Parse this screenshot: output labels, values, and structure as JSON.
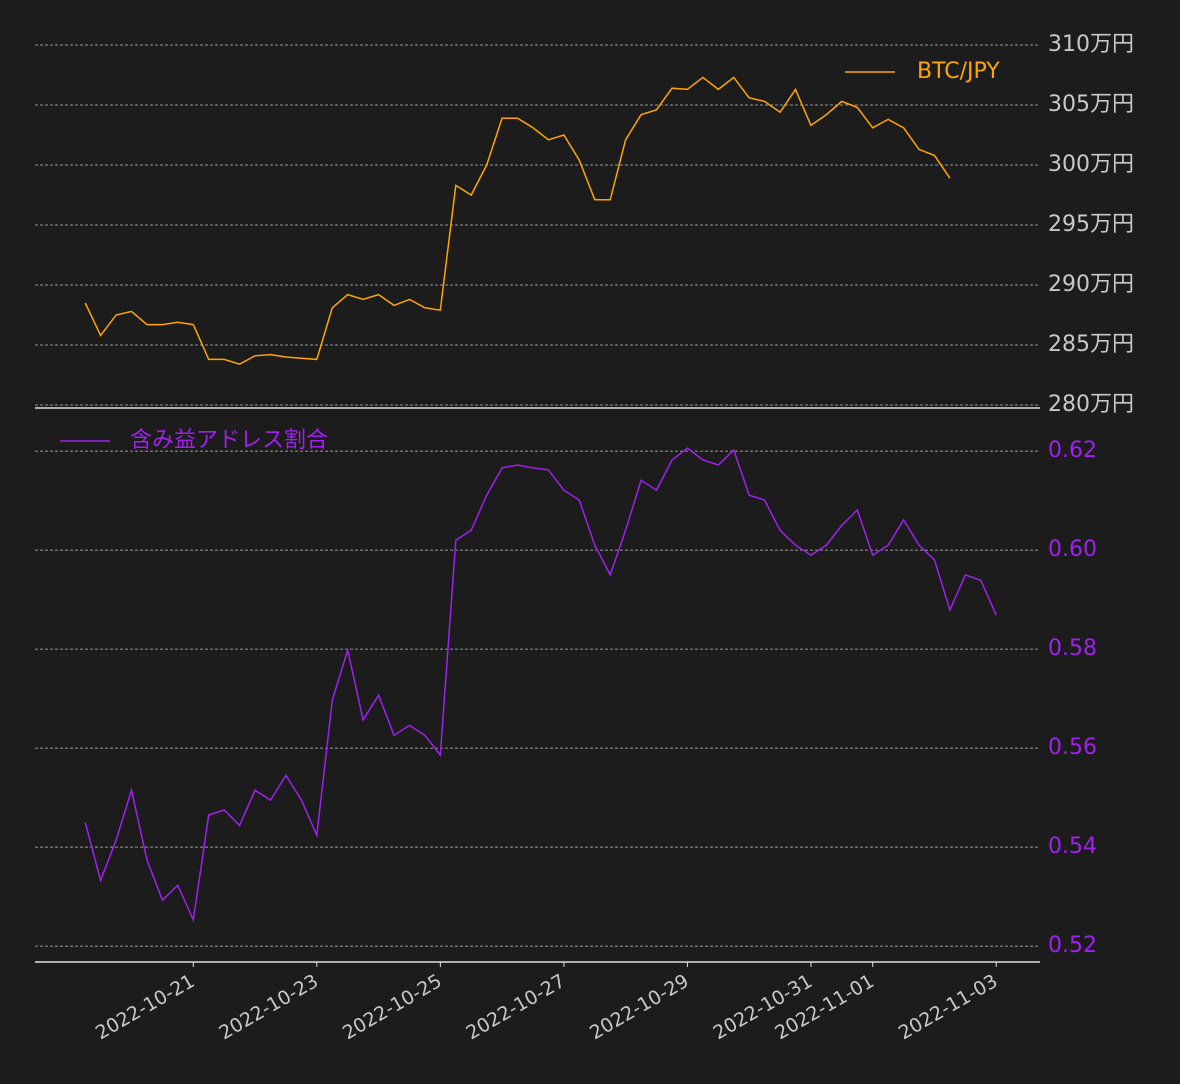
{
  "chart_data": [
    {
      "type": "line",
      "x": [
        "2022-10-19 06:00",
        "2022-10-19 12:00",
        "2022-10-19 18:00",
        "2022-10-20 00:00",
        "2022-10-20 06:00",
        "2022-10-20 12:00",
        "2022-10-20 18:00",
        "2022-10-21 00:00",
        "2022-10-21 06:00",
        "2022-10-21 12:00",
        "2022-10-21 18:00",
        "2022-10-22 00:00",
        "2022-10-22 06:00",
        "2022-10-22 12:00",
        "2022-10-22 18:00",
        "2022-10-23 00:00",
        "2022-10-23 06:00",
        "2022-10-23 12:00",
        "2022-10-23 18:00",
        "2022-10-24 00:00",
        "2022-10-24 06:00",
        "2022-10-24 12:00",
        "2022-10-24 18:00",
        "2022-10-25 00:00",
        "2022-10-25 06:00",
        "2022-10-25 12:00",
        "2022-10-25 18:00",
        "2022-10-26 00:00",
        "2022-10-26 06:00",
        "2022-10-26 12:00",
        "2022-10-26 18:00",
        "2022-10-27 00:00",
        "2022-10-27 06:00",
        "2022-10-27 12:00",
        "2022-10-27 18:00",
        "2022-10-28 00:00",
        "2022-10-28 06:00",
        "2022-10-28 12:00",
        "2022-10-28 18:00",
        "2022-10-29 00:00",
        "2022-10-29 06:00",
        "2022-10-29 12:00",
        "2022-10-29 18:00",
        "2022-10-30 00:00",
        "2022-10-30 06:00",
        "2022-10-30 12:00",
        "2022-10-30 18:00",
        "2022-10-31 00:00",
        "2022-10-31 06:00",
        "2022-10-31 12:00",
        "2022-10-31 18:00",
        "2022-11-01 00:00",
        "2022-11-01 06:00",
        "2022-11-01 12:00",
        "2022-11-01 18:00",
        "2022-11-02 00:00",
        "2022-11-02 06:00",
        "2022-11-02 12:00",
        "2022-11-02 18:00",
        "2022-11-03 00:00"
      ],
      "series": [
        {
          "name": "BTC/JPY",
          "color": "#ffa500",
          "values": [
            288.5,
            285.8,
            287.5,
            287.8,
            286.7,
            286.7,
            286.9,
            286.7,
            283.8,
            283.8,
            283.4,
            284.1,
            284.2,
            284.0,
            283.9,
            283.8,
            288.1,
            289.2,
            288.8,
            289.2,
            288.3,
            288.8,
            288.1,
            287.9,
            298.3,
            297.5,
            300.0,
            303.9,
            303.9,
            303.1,
            302.1,
            302.5,
            300.4,
            297.1,
            297.1,
            302.1,
            304.2,
            304.6,
            306.4,
            306.3,
            307.3,
            306.3,
            307.3,
            305.6,
            305.3,
            304.4,
            306.3,
            303.3,
            304.2,
            305.3,
            304.8,
            303.1,
            303.8,
            303.1,
            301.3,
            300.8,
            298.9,
            null,
            null,
            null
          ]
        }
      ],
      "ylim": [
        279.75,
        311.25
      ],
      "yticks": [
        {
          "value": 280,
          "label": "280万円"
        },
        {
          "value": 285,
          "label": "285万円"
        },
        {
          "value": 290,
          "label": "290万円"
        },
        {
          "value": 295,
          "label": "295万円"
        },
        {
          "value": 300,
          "label": "300万円"
        },
        {
          "value": 305,
          "label": "305万円"
        },
        {
          "value": 310,
          "label": "310万円"
        }
      ],
      "xlim": [
        "2022-10-18 10:30",
        "2022-11-03 17:00"
      ],
      "grid": true,
      "legend": "upper right",
      "tick_color": "#c8c8c8"
    },
    {
      "type": "line",
      "x": [
        "2022-10-19 06:00",
        "2022-10-19 12:00",
        "2022-10-19 18:00",
        "2022-10-20 00:00",
        "2022-10-20 06:00",
        "2022-10-20 12:00",
        "2022-10-20 18:00",
        "2022-10-21 00:00",
        "2022-10-21 06:00",
        "2022-10-21 12:00",
        "2022-10-21 18:00",
        "2022-10-22 00:00",
        "2022-10-22 06:00",
        "2022-10-22 12:00",
        "2022-10-22 18:00",
        "2022-10-23 00:00",
        "2022-10-23 06:00",
        "2022-10-23 12:00",
        "2022-10-23 18:00",
        "2022-10-24 00:00",
        "2022-10-24 06:00",
        "2022-10-24 12:00",
        "2022-10-24 18:00",
        "2022-10-25 00:00",
        "2022-10-25 06:00",
        "2022-10-25 12:00",
        "2022-10-25 18:00",
        "2022-10-26 00:00",
        "2022-10-26 06:00",
        "2022-10-26 12:00",
        "2022-10-26 18:00",
        "2022-10-27 00:00",
        "2022-10-27 06:00",
        "2022-10-27 12:00",
        "2022-10-27 18:00",
        "2022-10-28 00:00",
        "2022-10-28 06:00",
        "2022-10-28 12:00",
        "2022-10-28 18:00",
        "2022-10-29 00:00",
        "2022-10-29 06:00",
        "2022-10-29 12:00",
        "2022-10-29 18:00",
        "2022-10-30 00:00",
        "2022-10-30 06:00",
        "2022-10-30 12:00",
        "2022-10-30 18:00",
        "2022-10-31 00:00",
        "2022-10-31 06:00",
        "2022-10-31 12:00",
        "2022-10-31 18:00",
        "2022-11-01 00:00",
        "2022-11-01 06:00",
        "2022-11-01 12:00",
        "2022-11-01 18:00",
        "2022-11-02 00:00",
        "2022-11-02 06:00",
        "2022-11-02 12:00",
        "2022-11-02 18:00",
        "2022-11-03 00:00"
      ],
      "series": [
        {
          "name": "含み益アドレス割合",
          "color": "#a020f0",
          "values": [
            0.545,
            0.5333,
            0.5414,
            0.5515,
            0.5374,
            0.5293,
            0.5323,
            0.5253,
            0.5465,
            0.5475,
            0.5444,
            0.5515,
            0.5495,
            0.5545,
            0.5495,
            0.5424,
            0.5697,
            0.5798,
            0.5657,
            0.5707,
            0.5626,
            0.5646,
            0.5626,
            0.5586,
            0.602,
            0.604,
            0.6111,
            0.6166,
            0.6172,
            0.6166,
            0.6162,
            0.6121,
            0.6101,
            0.601,
            0.595,
            0.604,
            0.6141,
            0.6121,
            0.6182,
            0.6206,
            0.6182,
            0.6172,
            0.6202,
            0.6111,
            0.6101,
            0.604,
            0.601,
            0.599,
            0.601,
            0.605,
            0.6081,
            0.599,
            0.601,
            0.6061,
            0.601,
            0.598,
            0.5879,
            0.595,
            0.5939,
            0.5869
          ]
        }
      ],
      "ylim": [
        0.5168,
        0.6283
      ],
      "yticks": [
        {
          "value": 0.52,
          "label": "0.52"
        },
        0.54,
        0.56,
        0.58,
        {
          "value": 0.6,
          "label": "0.60"
        },
        0.62
      ],
      "xlim": [
        "2022-10-18 10:30",
        "2022-11-03 17:00"
      ],
      "xticks": [
        "2022-10-21",
        "2022-10-23",
        "2022-10-25",
        "2022-10-27",
        "2022-10-29",
        "2022-10-31",
        "2022-11-01",
        "2022-11-03"
      ],
      "grid": true,
      "legend": "upper left",
      "tick_color": "#a020f0"
    }
  ]
}
